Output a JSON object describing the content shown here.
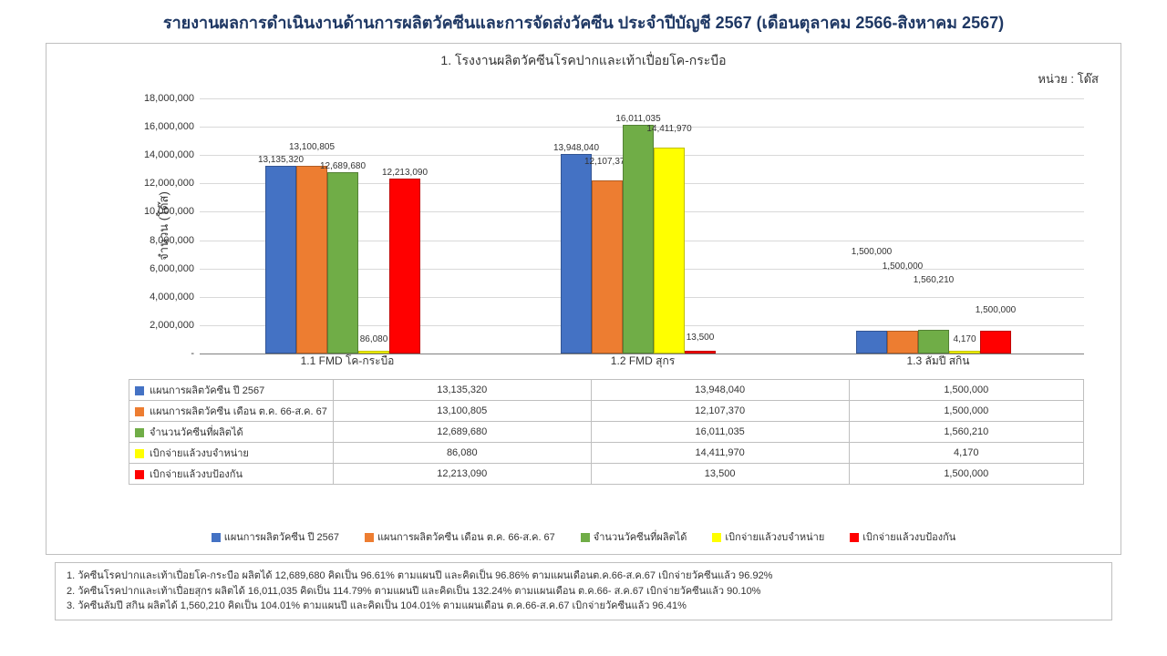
{
  "title": "รายงานผลการดำเนินงานด้านการผลิตวัคซีนและการจัดส่งวัคซีน ประจำปีบัญชี 2567 (เดือนตุลาคม 2566-สิงหาคม 2567)",
  "chart": {
    "title": "1. โรงงานผลิตวัคซีนโรคปากและเท้าเปื่อยโค-กระบือ",
    "unit_label": "หน่วย : โด๊ส",
    "y_axis_label": "จำนวน (โด๊ส)",
    "ymax": 18000000,
    "ytick_step": 2000000,
    "y_ticks": [
      "-",
      "2,000,000",
      "4,000,000",
      "6,000,000",
      "8,000,000",
      "10,000,000",
      "12,000,000",
      "14,000,000",
      "16,000,000",
      "18,000,000"
    ],
    "series": [
      {
        "name": "แผนการผลิตวัคซีน ปี 2567",
        "color": "#4472c4"
      },
      {
        "name": "แผนการผลิตวัคซีน เดือน ต.ค. 66-ส.ค. 67",
        "color": "#ed7d31"
      },
      {
        "name": "จำนวนวัคซีนที่ผลิตได้",
        "color": "#70ad47"
      },
      {
        "name": "เบิกจ่ายแล้วงบจำหน่าย",
        "color": "#ffff00"
      },
      {
        "name": "เบิกจ่ายแล้วงบป้องกัน",
        "color": "#ff0000"
      }
    ],
    "categories": [
      {
        "label": "1.1 FMD โค-กระบือ",
        "values": [
          13135320,
          13100805,
          12689680,
          86080,
          12213090
        ],
        "display": [
          "13,135,320",
          "13,100,805",
          "12,689,680",
          "86,080",
          "12,213,090"
        ]
      },
      {
        "label": "1.2 FMD สุกร",
        "values": [
          13948040,
          12107370,
          16011035,
          14411970,
          13500
        ],
        "display": [
          "13,948,040",
          "12,107,370",
          "16,011,035",
          "14,411,970",
          "13,500"
        ]
      },
      {
        "label": "1.3 ลัมปี สกิน",
        "values": [
          1500000,
          1500000,
          1560210,
          4170,
          1500000
        ],
        "display": [
          "1,500,000",
          "1,500,000",
          "1,560,210",
          "4,170",
          "1,500,000"
        ]
      }
    ]
  },
  "notes": [
    "1. วัคซีนโรคปากและเท้าเปื่อยโค-กระบือ   ผลิตได้ 12,689,680 คิดเป็น 96.61% ตามแผนปี และคิดเป็น 96.86% ตามแผนเดือนต.ค.66-ส.ค.67  เบิกจ่ายวัคซีนแล้ว 96.92%",
    "2. วัคซีนโรคปากและเท้าเปื่อยสุกร       ผลิตได้ 16,011,035 คิดเป็น 114.79%  ตามแผนปี และคิดเป็น 132.24% ตามแผนเดือน ต.ค.66- ส.ค.67 เบิกจ่ายวัคซีนแล้ว 90.10%",
    "3. วัคซีนลัมปี สกิน                        ผลิตได้ 1,560,210 คิดเป็น 104.01%  ตามแผนปี และคิดเป็น 104.01% ตามแผนเดือน ต.ค.66-ส.ค.67 เบิกจ่ายวัคซีนแล้ว 96.41%"
  ]
}
